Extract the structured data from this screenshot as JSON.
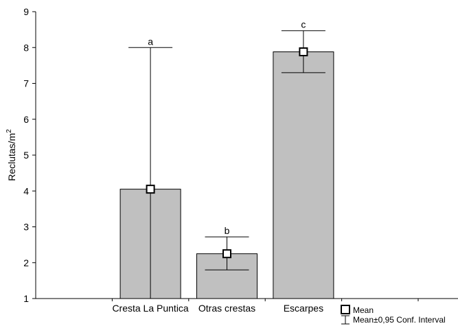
{
  "chart_data": {
    "type": "bar",
    "title": "",
    "xlabel": "",
    "ylabel": "Reclutas/m",
    "ylabel_superscript": "2",
    "ylim": [
      1,
      9
    ],
    "yticks": [
      1,
      2,
      3,
      4,
      5,
      6,
      7,
      8,
      9
    ],
    "categories": [
      "Cresta La Puntica",
      "Otras crestas",
      "Escarpes"
    ],
    "values": [
      4.05,
      2.25,
      7.88
    ],
    "ci_low": [
      1.0,
      1.8,
      7.3
    ],
    "ci_high": [
      8.0,
      2.72,
      8.47
    ],
    "annotations": [
      "a",
      "b",
      "c"
    ],
    "legend": {
      "placement": "bottom-right",
      "entries": [
        "Mean",
        "Mean±0,95 Conf. Interval"
      ]
    },
    "grid": false,
    "colors": {
      "bar_fill": "#c0c0c0",
      "bar_stroke": "#000000",
      "marker_fill": "#ffffff"
    }
  }
}
